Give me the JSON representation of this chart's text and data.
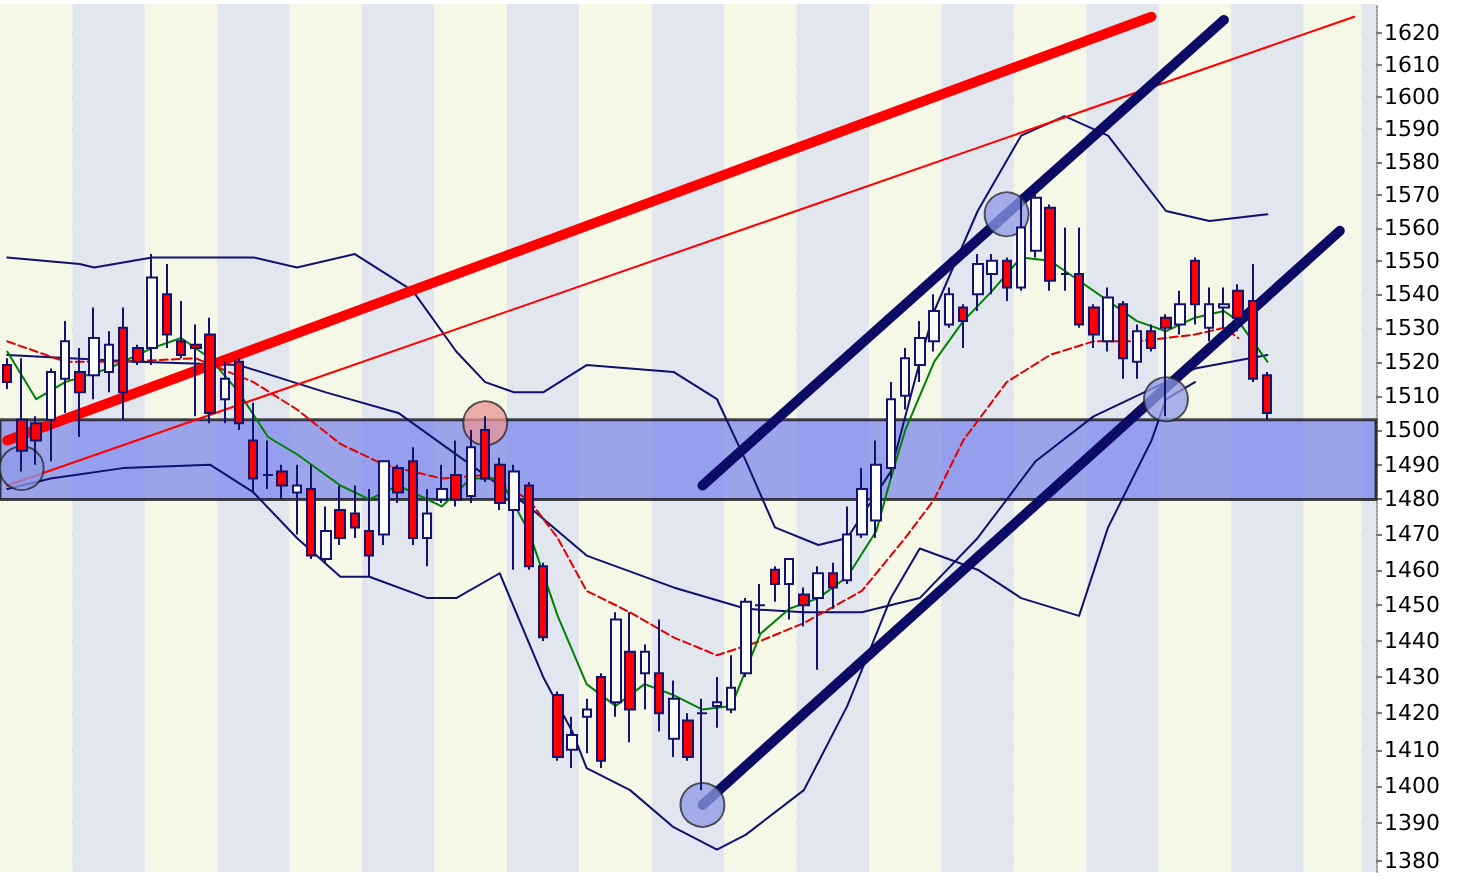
{
  "chart_data": {
    "type": "candlestick",
    "log": true,
    "grid": "y",
    "tick_labels": "y",
    "categories": [
      null,
      null,
      null,
      null,
      null,
      null,
      null,
      null,
      null,
      null,
      null,
      null,
      null,
      null,
      null,
      null,
      null,
      null,
      null,
      null,
      null,
      null,
      null,
      null,
      null,
      null,
      null,
      null,
      null,
      null,
      null,
      null,
      null,
      null,
      null,
      null,
      null,
      null,
      null,
      null,
      null,
      null,
      null,
      null,
      null,
      null,
      null,
      null,
      null,
      null,
      null,
      null,
      null,
      null,
      null,
      null,
      null,
      null,
      null,
      null,
      null,
      null,
      null,
      null,
      null,
      null,
      null,
      null,
      null,
      null,
      null,
      null,
      null,
      null,
      null,
      null,
      null,
      null,
      null,
      null,
      null,
      null,
      null,
      null,
      null,
      null,
      null,
      null,
      null,
      null,
      null,
      null,
      null,
      null,
      null
    ],
    "ohlc": [
      [
        1519,
        1521,
        1512,
        1514
      ],
      [
        1503,
        1521,
        1488,
        1494
      ],
      [
        1502,
        1504,
        1490,
        1497
      ],
      [
        1503,
        1518,
        1491,
        1517
      ],
      [
        1515,
        1532,
        1505,
        1526
      ],
      [
        1517,
        1524,
        1498,
        1511
      ],
      [
        1516,
        1536,
        1509,
        1527
      ],
      [
        1517,
        1529,
        1511,
        1525
      ],
      [
        1530,
        1536,
        1503,
        1511
      ],
      [
        1524,
        1525,
        1519,
        1520
      ],
      [
        1524,
        1552,
        1519,
        1545
      ],
      [
        1540,
        1549,
        1524,
        1528
      ],
      [
        1526,
        1538,
        1521,
        1522
      ],
      [
        1525,
        1531,
        1504,
        1524
      ],
      [
        1528,
        1533,
        1502,
        1505
      ],
      [
        1509,
        1520,
        1502,
        1515
      ],
      [
        1520,
        1521,
        1500,
        1502
      ],
      [
        1497,
        1508,
        1482,
        1486
      ],
      [
        1487,
        1497,
        1483,
        1487
      ],
      [
        1488,
        1490,
        1480,
        1484
      ],
      [
        1482,
        1490,
        1470,
        1484
      ],
      [
        1483,
        1490,
        1463,
        1464
      ],
      [
        1463,
        1478,
        1462,
        1471
      ],
      [
        1477,
        1484,
        1467,
        1469
      ],
      [
        1476,
        1484,
        1469,
        1472
      ],
      [
        1471,
        1483,
        1458,
        1464
      ],
      [
        1470,
        1491,
        1467,
        1491
      ],
      [
        1489,
        1490,
        1479,
        1482
      ],
      [
        1491,
        1495,
        1467,
        1469
      ],
      [
        1469,
        1483,
        1461,
        1476
      ],
      [
        1480,
        1490,
        1479,
        1483
      ],
      [
        1487,
        1497,
        1478,
        1480
      ],
      [
        1481,
        1500,
        1479,
        1495
      ],
      [
        1500,
        1504,
        1485,
        1486
      ],
      [
        1490,
        1492,
        1477,
        1479
      ],
      [
        1477,
        1490,
        1460,
        1488
      ],
      [
        1484,
        1485,
        1460,
        1461
      ],
      [
        1461,
        1462,
        1440,
        1441
      ],
      [
        1425,
        1426,
        1407,
        1408
      ],
      [
        1410,
        1419,
        1405,
        1414
      ],
      [
        1419,
        1424,
        1409,
        1421
      ],
      [
        1430,
        1431,
        1405,
        1407
      ],
      [
        1423,
        1448,
        1419,
        1446
      ],
      [
        1437,
        1448,
        1412,
        1421
      ],
      [
        1431,
        1439,
        1421,
        1437
      ],
      [
        1431,
        1446,
        1415,
        1420
      ],
      [
        1413,
        1429,
        1408,
        1424
      ],
      [
        1418,
        1420,
        1407,
        1408
      ],
      [
        1420,
        1424,
        1399,
        1420
      ],
      [
        1422,
        1430,
        1416,
        1423
      ],
      [
        1421,
        1436,
        1420,
        1427
      ],
      [
        1431,
        1452,
        1430,
        1451
      ],
      [
        1450,
        1456,
        1442,
        1450
      ],
      [
        1460,
        1461,
        1451,
        1456
      ],
      [
        1456,
        1463,
        1446,
        1463
      ],
      [
        1453,
        1455,
        1444,
        1450
      ],
      [
        1452,
        1461,
        1432,
        1459
      ],
      [
        1459,
        1462,
        1449,
        1455
      ],
      [
        1457,
        1478,
        1456,
        1470
      ],
      [
        1470,
        1489,
        1469,
        1483
      ],
      [
        1474,
        1497,
        1469,
        1490
      ],
      [
        1489,
        1514,
        1486,
        1509
      ],
      [
        1510,
        1524,
        1506,
        1521
      ],
      [
        1519,
        1532,
        1514,
        1527
      ],
      [
        1526,
        1540,
        1523,
        1535
      ],
      [
        1531,
        1542,
        1530,
        1540
      ],
      [
        1536,
        1537,
        1524,
        1532
      ],
      [
        1540,
        1552,
        1535,
        1549
      ],
      [
        1546,
        1552,
        1540,
        1550
      ],
      [
        1550,
        1551,
        1538,
        1542
      ],
      [
        1542,
        1570,
        1541,
        1560
      ],
      [
        1553,
        1570,
        1551,
        1569
      ],
      [
        1566,
        1567,
        1541,
        1544
      ],
      [
        1546,
        1560,
        1541,
        1546
      ],
      [
        1546,
        1560,
        1530,
        1531
      ],
      [
        1536,
        1537,
        1524,
        1528
      ],
      [
        1526,
        1542,
        1523,
        1539
      ],
      [
        1537,
        1538,
        1515,
        1521
      ],
      [
        1520,
        1531,
        1515,
        1529
      ],
      [
        1529,
        1531,
        1523,
        1524
      ],
      [
        1533,
        1534,
        1504,
        1530
      ],
      [
        1531,
        1541,
        1528,
        1537
      ],
      [
        1550,
        1551,
        1531,
        1537
      ],
      [
        1530,
        1542,
        1526,
        1537
      ],
      [
        1536,
        1542,
        1530,
        1537
      ],
      [
        1541,
        1543,
        1529,
        1533
      ],
      [
        1538,
        1549,
        1514,
        1515
      ],
      [
        1516,
        1517,
        1503,
        1505
      ],
      null,
      null,
      null,
      null,
      null,
      null,
      null
    ],
    "colors": [
      "#ff0000",
      "#ff0000",
      "#ff0000",
      "#ffffff",
      "#ffffff",
      "#ff0000",
      "#ffffff",
      "#ffffff",
      "#ff0000",
      "#ff0000",
      "#ffffff",
      "#ff0000",
      "#ff0000",
      "#ff0000",
      "#ff0000",
      "#ffffff",
      "#ff0000",
      "#ff0000",
      "#14146e",
      "#ff0000",
      "#ffffff",
      "#ff0000",
      "#ffffff",
      "#ff0000",
      "#ff0000",
      "#ff0000",
      "#ffffff",
      "#ff0000",
      "#ff0000",
      "#ffffff",
      "#ffffff",
      "#ff0000",
      "#ffffff",
      "#ff0000",
      "#ff0000",
      "#ffffff",
      "#ff0000",
      "#ff0000",
      "#ff0000",
      "#ffffff",
      "#ffffff",
      "#ff0000",
      "#ffffff",
      "#ff0000",
      "#ffffff",
      "#ff0000",
      "#ffffff",
      "#ff0000",
      "#14146e",
      "#ffffff",
      "#ffffff",
      "#ffffff",
      "#14146e",
      "#ff0000",
      "#ffffff",
      "#ff0000",
      "#ffffff",
      "#ff0000",
      "#ffffff",
      "#ffffff",
      "#ffffff",
      "#ffffff",
      "#ffffff",
      "#ffffff",
      "#ffffff",
      "#ffffff",
      "#ff0000",
      "#ffffff",
      "#ffffff",
      "#ff0000",
      "#ffffff",
      "#ffffff",
      "#ff0000",
      "#14146e",
      "#ff0000",
      "#ff0000",
      "#ffffff",
      "#ff0000",
      "#ffffff",
      "#ff0000",
      "#ff0000",
      "#ffffff",
      "#ff0000",
      "#ffffff",
      "#ffffff",
      "#ff0000",
      "#ff0000",
      "#ff0000",
      null,
      null,
      null,
      null,
      null,
      null,
      null
    ],
    "series": [
      {
        "type": "line",
        "color": "#10106e",
        "line_style": "solid",
        "values": [
          1551,
          null,
          null,
          null,
          null,
          1549,
          1548,
          null,
          null,
          null,
          1551,
          null,
          null,
          null,
          null,
          null,
          null,
          1551,
          null,
          null,
          1548,
          null,
          null,
          null,
          1552,
          null,
          null,
          null,
          1541,
          null,
          null,
          1523,
          null,
          1514,
          null,
          1511,
          null,
          1511,
          null,
          null,
          1519,
          null,
          null,
          null,
          null,
          null,
          1517,
          null,
          null,
          1509,
          null,
          1491,
          null,
          1472,
          null,
          null,
          1467,
          null,
          1469,
          null,
          null,
          1488,
          null,
          1520,
          1535,
          null,
          null,
          1565,
          null,
          null,
          1588,
          null,
          null,
          1594,
          null,
          null,
          1588,
          null,
          null,
          null,
          1565,
          null,
          null,
          1562,
          null,
          null,
          null,
          1564,
          null,
          null,
          null,
          null,
          null,
          null,
          null
        ]
      },
      {
        "type": "line",
        "color": "#10106e",
        "line_style": "solid",
        "values": [
          1483,
          null,
          null,
          1486,
          null,
          null,
          null,
          null,
          1489,
          null,
          null,
          null,
          null,
          null,
          1490,
          null,
          null,
          1482,
          null,
          null,
          1469,
          null,
          null,
          1458,
          null,
          1458,
          null,
          null,
          null,
          1452,
          null,
          1452,
          null,
          null,
          1459,
          null,
          null,
          1430,
          null,
          1415,
          1405,
          null,
          null,
          1399,
          null,
          null,
          1389,
          null,
          null,
          1383,
          null,
          1387,
          null,
          null,
          null,
          1399,
          null,
          null,
          1422,
          null,
          null,
          1452,
          null,
          1466,
          null,
          null,
          null,
          1460,
          null,
          null,
          1452,
          null,
          null,
          null,
          1447,
          null,
          1472,
          null,
          null,
          1497,
          1509,
          null,
          1514,
          null,
          null,
          null,
          null,
          null,
          null,
          null,
          null,
          null,
          null,
          null,
          null
        ]
      },
      {
        "type": "line",
        "color": "#10106e",
        "line_style": "solid",
        "values": [
          1522,
          null,
          null,
          null,
          null,
          null,
          null,
          null,
          null,
          1520,
          null,
          null,
          null,
          null,
          null,
          null,
          1519,
          null,
          null,
          null,
          null,
          null,
          1511,
          null,
          null,
          null,
          null,
          1505,
          null,
          null,
          null,
          null,
          null,
          null,
          null,
          null,
          1478,
          null,
          null,
          null,
          1464,
          null,
          null,
          null,
          null,
          null,
          1455,
          null,
          null,
          null,
          null,
          1449,
          null,
          null,
          null,
          1448,
          null,
          null,
          null,
          1448,
          null,
          null,
          null,
          1452,
          null,
          null,
          null,
          1469,
          null,
          null,
          null,
          1491,
          null,
          null,
          null,
          1504,
          null,
          null,
          null,
          1512,
          null,
          null,
          1518,
          null,
          null,
          null,
          null,
          1522,
          null,
          null,
          null,
          null,
          null,
          null,
          null
        ]
      },
      {
        "type": "line",
        "color": "#e00000",
        "line_style": "dashed",
        "values": [
          1526,
          null,
          null,
          null,
          1520,
          null,
          null,
          null,
          1520,
          null,
          null,
          null,
          null,
          1521,
          null,
          null,
          null,
          1514,
          null,
          null,
          1506,
          null,
          null,
          1496,
          null,
          null,
          1490,
          null,
          null,
          null,
          1486,
          null,
          null,
          1487,
          null,
          null,
          1480,
          null,
          1469,
          null,
          1454,
          null,
          null,
          1448,
          null,
          null,
          1441,
          null,
          null,
          1436,
          null,
          null,
          1440,
          null,
          null,
          1445,
          null,
          null,
          null,
          1454,
          null,
          null,
          1469,
          null,
          1480,
          null,
          1497,
          null,
          null,
          1514,
          null,
          null,
          1522,
          null,
          null,
          1526,
          null,
          null,
          1526,
          null,
          null,
          null,
          1528,
          null,
          1530,
          1527,
          null,
          null,
          null,
          null,
          null,
          null,
          null,
          null,
          null
        ]
      },
      {
        "type": "line",
        "color": "#008000",
        "line_style": "solid",
        "values": [
          1523,
          null,
          1509,
          null,
          1514,
          null,
          null,
          1518,
          null,
          null,
          1524,
          null,
          1527,
          null,
          1521,
          null,
          1511,
          null,
          1498,
          null,
          1493,
          null,
          null,
          1484,
          null,
          1480,
          null,
          1484,
          null,
          null,
          1478,
          null,
          1486,
          null,
          1486,
          null,
          1471,
          null,
          1447,
          null,
          1428,
          null,
          1422,
          null,
          1428,
          null,
          1425,
          null,
          1421,
          null,
          1422,
          null,
          1442,
          null,
          1449,
          null,
          1452,
          null,
          1458,
          null,
          1471,
          1486,
          1500,
          null,
          1520,
          null,
          1532,
          null,
          1541,
          null,
          1551,
          null,
          1550,
          null,
          1544,
          null,
          1538,
          null,
          1532,
          null,
          1529,
          null,
          1533,
          null,
          1535,
          1532,
          null,
          1520,
          null,
          null,
          null,
          null,
          null,
          null,
          null
        ]
      },
      {
        "type": "line",
        "color": "#ff0000",
        "line_style": "solid",
        "values": [
          1497,
          null,
          null,
          null,
          null,
          null,
          null,
          null,
          null,
          null,
          null,
          null,
          null,
          null,
          null,
          null,
          null,
          null,
          null,
          null,
          null,
          null,
          null,
          null,
          null,
          null,
          null,
          null,
          null,
          null,
          null,
          null,
          null,
          null,
          null,
          null,
          null,
          null,
          null,
          null,
          null,
          null,
          null,
          null,
          null,
          null,
          null,
          null,
          null,
          null,
          null,
          null,
          null,
          null,
          null,
          null,
          null,
          null,
          null,
          null,
          null,
          null,
          null,
          null,
          null,
          null,
          null,
          null,
          null,
          null,
          null,
          null,
          null,
          null,
          null,
          null,
          null,
          null,
          null,
          1625,
          null,
          null,
          null,
          null,
          null,
          null,
          null,
          null,
          null,
          null,
          null,
          null,
          null,
          null,
          null
        ]
      },
      {
        "type": "line",
        "color": "#ff0000",
        "line_style": "solid",
        "values": [
          1484,
          null,
          null,
          null,
          null,
          null,
          null,
          null,
          null,
          null,
          null,
          null,
          null,
          null,
          null,
          null,
          null,
          null,
          null,
          null,
          null,
          null,
          null,
          null,
          null,
          null,
          null,
          null,
          null,
          null,
          null,
          null,
          null,
          null,
          null,
          null,
          null,
          null,
          null,
          null,
          null,
          null,
          null,
          null,
          null,
          null,
          null,
          null,
          null,
          null,
          null,
          null,
          null,
          null,
          null,
          null,
          null,
          null,
          null,
          null,
          null,
          null,
          null,
          null,
          null,
          null,
          null,
          null,
          null,
          null,
          null,
          null,
          null,
          null,
          null,
          null,
          null,
          null,
          null,
          null,
          null,
          null,
          null,
          null,
          null,
          null,
          null,
          null,
          null,
          null,
          null,
          null,
          null,
          1625,
          null
        ]
      },
      {
        "type": "line",
        "color": "#0c0c66",
        "line_style": "solid",
        "values": [
          null,
          null,
          null,
          null,
          null,
          null,
          null,
          null,
          null,
          null,
          null,
          null,
          null,
          null,
          null,
          null,
          null,
          null,
          null,
          null,
          null,
          null,
          null,
          null,
          null,
          null,
          null,
          null,
          null,
          null,
          null,
          null,
          null,
          null,
          null,
          null,
          null,
          null,
          null,
          null,
          null,
          null,
          null,
          null,
          null,
          null,
          null,
          null,
          1484,
          null,
          null,
          null,
          null,
          null,
          null,
          null,
          null,
          null,
          null,
          null,
          null,
          null,
          null,
          null,
          null,
          null,
          null,
          null,
          null,
          null,
          null,
          null,
          null,
          null,
          null,
          null,
          null,
          null,
          null,
          null,
          null,
          null,
          null,
          null,
          1624,
          null,
          null,
          null,
          null,
          null,
          null,
          null,
          null,
          null,
          null
        ]
      },
      {
        "type": "line",
        "color": "#0c0c66",
        "line_style": "solid",
        "values": [
          null,
          null,
          null,
          null,
          null,
          null,
          null,
          null,
          null,
          null,
          null,
          null,
          null,
          null,
          null,
          null,
          null,
          null,
          null,
          null,
          null,
          null,
          null,
          null,
          null,
          null,
          null,
          null,
          null,
          null,
          null,
          null,
          null,
          null,
          null,
          null,
          null,
          null,
          null,
          null,
          null,
          null,
          null,
          null,
          null,
          null,
          null,
          null,
          1395,
          null,
          null,
          null,
          null,
          null,
          null,
          null,
          null,
          null,
          null,
          null,
          null,
          null,
          null,
          null,
          null,
          null,
          null,
          null,
          null,
          null,
          null,
          null,
          null,
          null,
          null,
          null,
          null,
          null,
          null,
          null,
          null,
          null,
          null,
          null,
          null,
          null,
          null,
          null,
          null,
          null,
          null,
          null,
          1559,
          null,
          null
        ]
      },
      {
        "type": "scatter",
        "color": "#8e98e6",
        "marker": "circle",
        "values": [
          null,
          1489,
          null,
          null,
          null,
          null,
          null,
          null,
          null,
          null,
          null,
          null,
          null,
          null,
          null,
          null,
          null,
          null,
          null,
          null,
          null,
          null,
          null,
          null,
          null,
          null,
          null,
          null,
          null,
          null,
          null,
          null,
          null,
          null,
          null,
          null,
          null,
          null,
          null,
          null,
          null,
          null,
          null,
          null,
          null,
          null,
          null,
          null,
          1395,
          null,
          null,
          null,
          null,
          null,
          null,
          null,
          null,
          null,
          null,
          null,
          null,
          null,
          null,
          null,
          null,
          null,
          null,
          null,
          null,
          1564,
          null,
          null,
          null,
          null,
          null,
          null,
          null,
          null,
          null,
          null,
          1509,
          null,
          null,
          null,
          null,
          null,
          null,
          null,
          null,
          null,
          null,
          null,
          null,
          null,
          null
        ]
      },
      {
        "type": "scatter",
        "color": "#e89494",
        "marker": "circle",
        "values": [
          null,
          null,
          null,
          null,
          null,
          null,
          null,
          null,
          null,
          null,
          null,
          null,
          null,
          null,
          null,
          null,
          null,
          null,
          null,
          null,
          null,
          null,
          null,
          null,
          null,
          null,
          null,
          null,
          null,
          null,
          null,
          null,
          null,
          1502,
          null,
          null,
          null,
          null,
          null,
          null,
          null,
          null,
          null,
          null,
          null,
          null,
          null,
          null,
          null,
          null,
          null,
          null,
          null,
          null,
          null,
          null,
          null,
          null,
          null,
          null,
          null,
          null,
          null,
          null,
          null,
          null,
          null,
          null,
          null,
          null,
          null,
          null,
          null,
          null,
          null,
          null,
          null,
          null,
          null,
          null,
          null,
          null,
          null,
          null,
          null,
          null,
          null,
          null,
          null,
          null,
          null,
          null,
          null,
          null,
          null
        ]
      }
    ],
    "bands": [
      {
        "axis": "y",
        "from": 1480,
        "to": 1503,
        "color": "#7580ec"
      }
    ],
    "ylim": [
      1377,
      1629
    ],
    "yticks": [
      1380,
      1390,
      1400,
      1410,
      1420,
      1430,
      1440,
      1450,
      1460,
      1470,
      1480,
      1490,
      1500,
      1510,
      1520,
      1530,
      1540,
      1550,
      1560,
      1570,
      1580,
      1590,
      1600,
      1610,
      1620
    ]
  }
}
